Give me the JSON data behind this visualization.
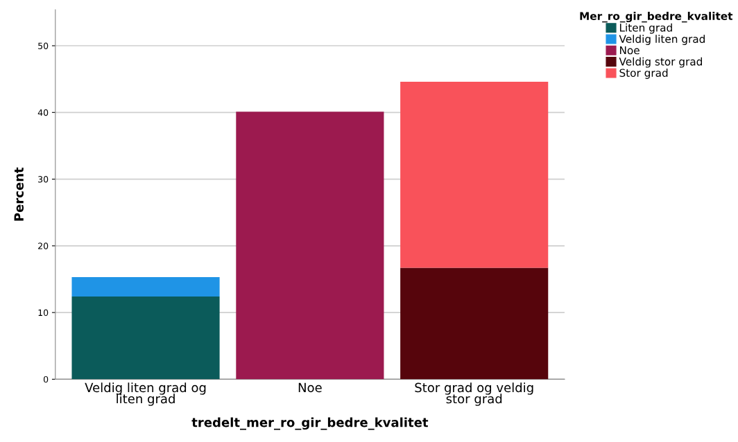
{
  "chart_data": {
    "type": "bar",
    "stacked": true,
    "xlabel": "tredelt_mer_ro_gir_bedre_kvalitet",
    "ylabel": "Percent",
    "legend_title": "Mer_ro_gir_bedre_kvalitet",
    "categories": [
      "Veldig liten grad og\nliten grad",
      "Noe",
      "Stor grad og veldig\nstor grad"
    ],
    "series": [
      {
        "name": "Liten grad",
        "color": "#0b5b5a",
        "values": [
          12.4,
          null,
          null
        ]
      },
      {
        "name": "Veldig liten grad",
        "color": "#1f94e6",
        "values": [
          2.9,
          null,
          null
        ]
      },
      {
        "name": "Noe",
        "color": "#9c1a4f",
        "values": [
          null,
          40.1,
          null
        ]
      },
      {
        "name": "Veldig stor grad",
        "color": "#56050c",
        "values": [
          null,
          null,
          16.7
        ]
      },
      {
        "name": "Stor grad",
        "color": "#f9525a",
        "values": [
          null,
          null,
          27.9
        ]
      }
    ],
    "ylim": [
      0,
      55.4
    ],
    "yticks": [
      0,
      10,
      20,
      30,
      40,
      50
    ],
    "grid": "y",
    "legend": "top right"
  }
}
